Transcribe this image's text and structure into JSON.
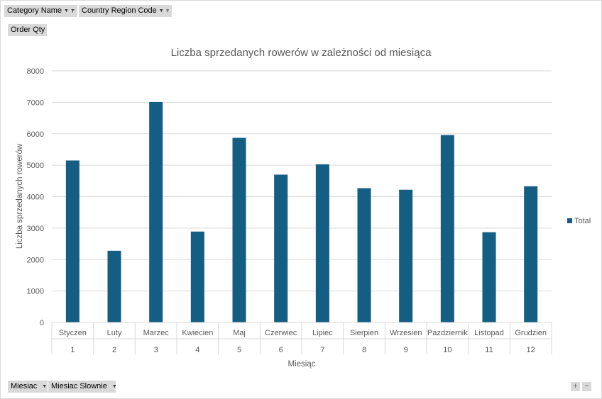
{
  "pivot": {
    "filters": [
      {
        "label": "Category Name"
      },
      {
        "label": "Country Region Code"
      }
    ],
    "value_field": "Order Qty",
    "axis_fields": [
      {
        "label": "Miesiac"
      },
      {
        "label": "Miesiac Slownie"
      }
    ]
  },
  "colors": {
    "bar": "#135e82",
    "grid": "#d9d9d9",
    "text": "#595959"
  },
  "chart_data": {
    "type": "bar",
    "title": "Liczba sprzedanych rowerów w zależności od miesiąca",
    "xlabel": "Miesiąc",
    "ylabel": "Liczba sprzedanych rowerów",
    "ylim": [
      0,
      8000
    ],
    "yticks": [
      0,
      1000,
      2000,
      3000,
      4000,
      5000,
      6000,
      7000,
      8000
    ],
    "categories": [
      "Styczen",
      "Luty",
      "Marzec",
      "Kwiecien",
      "Maj",
      "Czerwiec",
      "Lipiec",
      "Sierpien",
      "Wrzesien",
      "Pazdziernik",
      "Listopad",
      "Grudzien"
    ],
    "category_groups": [
      "1",
      "2",
      "3",
      "4",
      "5",
      "6",
      "7",
      "8",
      "9",
      "10",
      "11",
      "12"
    ],
    "series": [
      {
        "name": "Total",
        "values": [
          5150,
          2280,
          7010,
          2890,
          5870,
          4700,
          5030,
          4270,
          4220,
          5960,
          2870,
          4330
        ]
      }
    ],
    "legend": "right",
    "grid": true
  }
}
